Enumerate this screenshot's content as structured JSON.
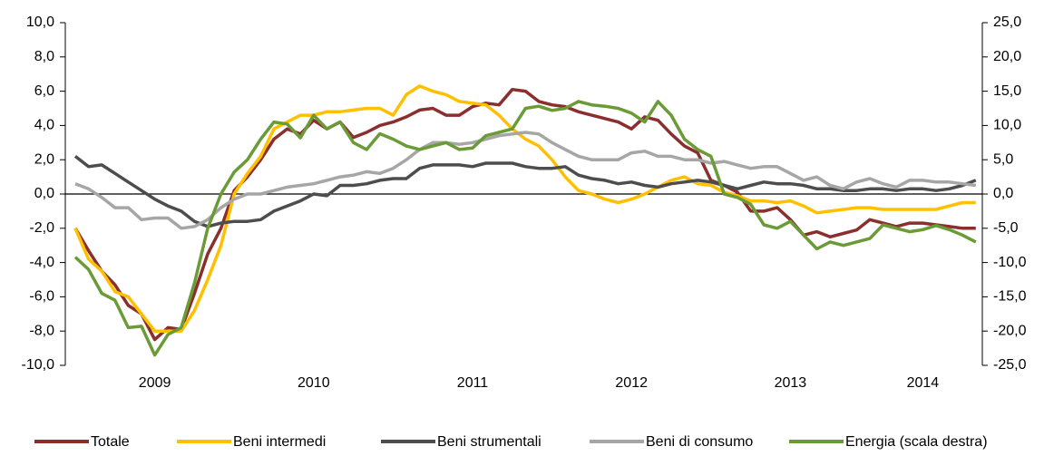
{
  "chart_data": {
    "type": "line",
    "categories": [
      null,
      null,
      null,
      null,
      null,
      null,
      "2009",
      null,
      null,
      null,
      null,
      null,
      null,
      null,
      null,
      null,
      null,
      null,
      "2010",
      null,
      null,
      null,
      null,
      null,
      null,
      null,
      null,
      null,
      null,
      null,
      "2011",
      null,
      null,
      null,
      null,
      null,
      null,
      null,
      null,
      null,
      null,
      null,
      "2012",
      null,
      null,
      null,
      null,
      null,
      null,
      null,
      null,
      null,
      null,
      null,
      "2013",
      null,
      null,
      null,
      null,
      null,
      null,
      null,
      null,
      null,
      "2014",
      null,
      null,
      null,
      null
    ],
    "ylim": [
      -10,
      10
    ],
    "yticks": [
      {
        "value": -10,
        "label": "-10,0"
      },
      {
        "value": -8,
        "label": "-8,0"
      },
      {
        "value": -6,
        "label": "-6,0"
      },
      {
        "value": -4,
        "label": "-4,0"
      },
      {
        "value": -2,
        "label": "-2,0"
      },
      {
        "value": 0,
        "label": "0,0"
      },
      {
        "value": 2,
        "label": "2,0"
      },
      {
        "value": 4,
        "label": "4,0"
      },
      {
        "value": 6,
        "label": "6,0"
      },
      {
        "value": 8,
        "label": "8,0"
      },
      {
        "value": 10,
        "label": "10,0"
      }
    ],
    "y2lim": [
      -25,
      25
    ],
    "y2ticks": [
      {
        "value": -25,
        "label": "-25,0"
      },
      {
        "value": -20,
        "label": "-20,0"
      },
      {
        "value": -15,
        "label": "-15,0"
      },
      {
        "value": -10,
        "label": "-10,0"
      },
      {
        "value": -5,
        "label": "-5,0"
      },
      {
        "value": 0,
        "label": "0,0"
      },
      {
        "value": 5,
        "label": "5,0"
      },
      {
        "value": 10,
        "label": "10,0"
      },
      {
        "value": 15,
        "label": "15,0"
      },
      {
        "value": 20,
        "label": "20,0"
      },
      {
        "value": 25,
        "label": "25,0"
      }
    ],
    "series": [
      {
        "name": "Totale",
        "color": "#8b2e2e",
        "values": [
          -2.0,
          -3.3,
          -4.5,
          -5.3,
          -6.5,
          -7.0,
          -8.5,
          -7.8,
          -7.9,
          -5.8,
          -3.5,
          -2.0,
          0.2,
          1.0,
          2.0,
          3.2,
          3.8,
          3.5,
          4.3,
          3.8,
          4.2,
          3.3,
          3.6,
          4.0,
          4.2,
          4.5,
          4.9,
          5.0,
          4.6,
          4.6,
          5.1,
          5.3,
          5.2,
          6.1,
          6.0,
          5.4,
          5.2,
          5.1,
          4.8,
          4.6,
          4.4,
          4.2,
          3.8,
          4.5,
          4.3,
          3.5,
          2.8,
          2.4,
          0.8,
          0.5,
          0.1,
          -1.0,
          -1.0,
          -0.8,
          -1.5,
          -2.4,
          -2.2,
          -2.5,
          -2.3,
          -2.1,
          -1.5,
          -1.7,
          -1.9,
          -1.7,
          -1.7,
          -1.8,
          -1.9,
          -2.0,
          -2.0
        ]
      },
      {
        "name": "Beni intermedi",
        "color": "#ffc000",
        "values": [
          -2.0,
          -3.8,
          -4.5,
          -5.7,
          -6.0,
          -7.0,
          -8.0,
          -8.0,
          -8.0,
          -6.8,
          -5.0,
          -3.0,
          0.0,
          1.2,
          2.2,
          3.8,
          4.2,
          4.6,
          4.6,
          4.8,
          4.8,
          4.9,
          5.0,
          5.0,
          4.6,
          5.8,
          6.3,
          6.0,
          5.8,
          5.4,
          5.3,
          5.2,
          4.6,
          3.8,
          3.2,
          2.8,
          2.0,
          1.0,
          0.2,
          0.0,
          -0.3,
          -0.5,
          -0.3,
          0.0,
          0.4,
          0.8,
          1.0,
          0.6,
          0.5,
          0.1,
          -0.1,
          -0.4,
          -0.4,
          -0.5,
          -0.4,
          -0.7,
          -1.1,
          -1.0,
          -0.9,
          -0.8,
          -0.8,
          -0.9,
          -0.9,
          -0.9,
          -0.9,
          -0.9,
          -0.7,
          -0.5,
          -0.5
        ]
      },
      {
        "name": "Beni strumentali",
        "color": "#4d4d4d",
        "values": [
          2.2,
          1.6,
          1.7,
          1.2,
          0.7,
          0.2,
          -0.3,
          -0.7,
          -1.0,
          -1.6,
          -1.9,
          -1.7,
          -1.6,
          -1.6,
          -1.5,
          -1.0,
          -0.7,
          -0.4,
          0.0,
          -0.1,
          0.5,
          0.5,
          0.6,
          0.8,
          0.9,
          0.9,
          1.5,
          1.7,
          1.7,
          1.7,
          1.6,
          1.8,
          1.8,
          1.8,
          1.6,
          1.5,
          1.5,
          1.6,
          1.1,
          0.9,
          0.8,
          0.6,
          0.7,
          0.5,
          0.4,
          0.6,
          0.7,
          0.8,
          0.7,
          0.5,
          0.3,
          0.5,
          0.7,
          0.6,
          0.6,
          0.5,
          0.3,
          0.3,
          0.2,
          0.2,
          0.3,
          0.3,
          0.2,
          0.3,
          0.3,
          0.2,
          0.3,
          0.5,
          0.8
        ]
      },
      {
        "name": "Beni di consumo",
        "color": "#a6a6a6",
        "values": [
          0.6,
          0.3,
          -0.2,
          -0.8,
          -0.8,
          -1.5,
          -1.4,
          -1.4,
          -2.0,
          -1.9,
          -1.5,
          -0.8,
          -0.3,
          0.0,
          0.0,
          0.2,
          0.4,
          0.5,
          0.6,
          0.8,
          1.0,
          1.1,
          1.3,
          1.2,
          1.5,
          2.0,
          2.6,
          3.0,
          3.0,
          2.9,
          3.0,
          3.2,
          3.4,
          3.5,
          3.6,
          3.5,
          3.0,
          2.6,
          2.2,
          2.0,
          2.0,
          2.0,
          2.4,
          2.5,
          2.2,
          2.2,
          2.0,
          2.0,
          1.8,
          1.9,
          1.7,
          1.5,
          1.6,
          1.6,
          1.2,
          0.8,
          1.0,
          0.5,
          0.3,
          0.7,
          0.9,
          0.6,
          0.4,
          0.8,
          0.8,
          0.7,
          0.7,
          0.6,
          0.5
        ]
      },
      {
        "name": "Energia (scala destra)",
        "color": "#6b9b37",
        "axis": "y2",
        "values": [
          -9.2,
          -11,
          -14.5,
          -15.5,
          -19.5,
          -19.3,
          -23.5,
          -20.5,
          -19.5,
          -13,
          -5,
          0,
          3.2,
          5,
          8,
          10.5,
          10.2,
          8.2,
          11.5,
          9.5,
          10.5,
          7.5,
          6.5,
          8.8,
          8,
          7,
          6.5,
          7,
          7.5,
          6.5,
          6.7,
          8.5,
          9,
          9.5,
          12.5,
          12.8,
          12.2,
          12.5,
          13.5,
          13,
          12.8,
          12.5,
          11.8,
          10.5,
          13.5,
          11.5,
          8,
          6.5,
          5.5,
          0,
          -0.5,
          -1.5,
          -4.5,
          -5,
          -4,
          -6,
          -8,
          -7,
          -7.5,
          -7,
          -6.5,
          -4.5,
          -5,
          -5.5,
          -5.2,
          -4.6,
          -5.2,
          -6,
          -7
        ]
      }
    ]
  }
}
